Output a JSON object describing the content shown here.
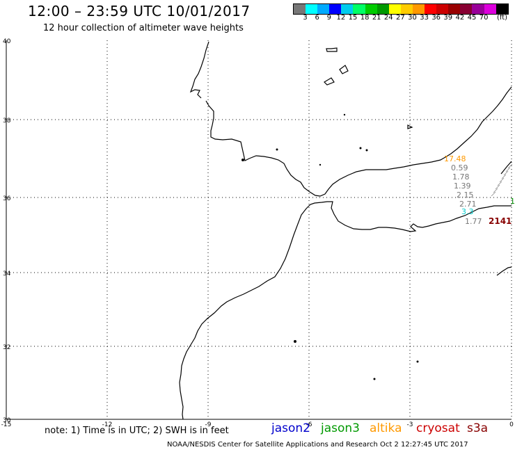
{
  "title": "12:00 – 23:59 UTC 10/01/2017",
  "subtitle": "12 hour collection of altimeter wave heights",
  "colorbar": {
    "colors": [
      "#777777",
      "#00ffff",
      "#00aaff",
      "#0000ff",
      "#00ccee",
      "#00ff66",
      "#00cc00",
      "#009900",
      "#ffff00",
      "#ffcc00",
      "#ff9900",
      "#ff0000",
      "#cc0000",
      "#990000",
      "#880033",
      "#990099",
      "#dd00dd",
      "#000000"
    ],
    "ticks": [
      "3",
      "6",
      "9",
      "12",
      "15",
      "18",
      "21",
      "24",
      "27",
      "30",
      "33",
      "36",
      "39",
      "42",
      "45",
      "70"
    ],
    "unit": "(ft)"
  },
  "map": {
    "lat_labels": [
      "40",
      "38",
      "36",
      "34",
      "32",
      "30"
    ],
    "lon_labels": [
      "-15",
      "-12",
      "-9",
      "-6",
      "-3",
      "0"
    ]
  },
  "observations": [
    {
      "text": "17.48",
      "color": "#ff9900"
    },
    {
      "text": "0.59",
      "color": "#777777"
    },
    {
      "text": "1.78",
      "color": "#777777"
    },
    {
      "text": "1.39",
      "color": "#777777"
    },
    {
      "text": "2.15",
      "color": "#777777"
    },
    {
      "text": "2.71",
      "color": "#777777"
    },
    {
      "text": "3.3",
      "color": "#00cccc"
    },
    {
      "text": "1.77",
      "color": "#777777"
    },
    {
      "text": "2141",
      "color": "#880000"
    },
    {
      "text": "1",
      "color": "#008800"
    }
  ],
  "note": "note:  1) Time is in UTC;  2) SWH is in feet",
  "legend": [
    {
      "label": "jason2",
      "color": "#0000cc"
    },
    {
      "label": "jason3",
      "color": "#009900"
    },
    {
      "label": "altika",
      "color": "#ff9900"
    },
    {
      "label": "cryosat",
      "color": "#cc0000"
    },
    {
      "label": "s3a",
      "color": "#880000"
    }
  ],
  "credit": "NOAA/NESDIS Center for Satellite Applications and Research    Oct  2 12:27:45 UTC 2017"
}
